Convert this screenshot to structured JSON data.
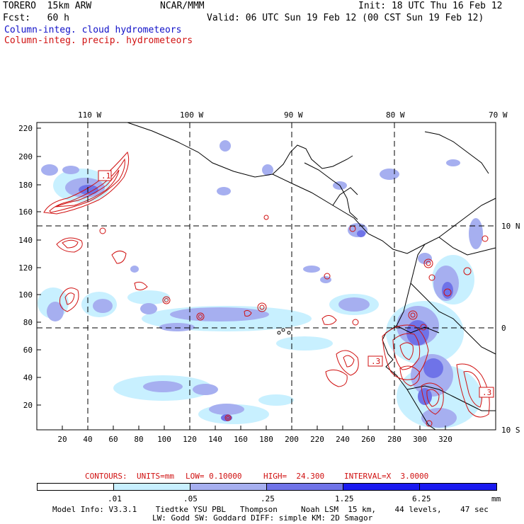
{
  "header": {
    "model": "TORERO  15km ARW",
    "org": "NCAR/MMM",
    "init": "Init: 18 UTC Thu 16 Feb 12",
    "fcst": "Fcst:   60 h",
    "valid": "Valid: 06 UTC Sun 19 Feb 12 (00 CST Sun 19 Feb 12)",
    "field1": "Column-integ. cloud hydrometeors",
    "field2": "Column-integ. precip. hydrometeors"
  },
  "axes": {
    "lon_labels": [
      "110 W",
      "100 W",
      "90 W",
      "80 W",
      "70 W"
    ],
    "lat_labels": [
      "10 N",
      "0",
      "10 S"
    ],
    "y_ticks": [
      "220",
      "200",
      "180",
      "160",
      "140",
      "120",
      "100",
      "80",
      "60",
      "40",
      "20"
    ],
    "x_ticks": [
      "20",
      "40",
      "60",
      "80",
      "100",
      "120",
      "140",
      "160",
      "180",
      "200",
      "220",
      "240",
      "260",
      "280",
      "300",
      "320"
    ]
  },
  "contour_labels": [
    ".1",
    ".3",
    ".3"
  ],
  "contours_info": {
    "prefix": "CONTOURS:",
    "units": "UNITS=mm",
    "low": "LOW= 0.10000",
    "high": "HIGH=  24.300",
    "interval": "INTERVAL=X  3.0000"
  },
  "colorbar": {
    "labels": [
      ".01",
      ".05",
      ".25",
      "1.25",
      "6.25"
    ],
    "unit": "mm",
    "colors": [
      "#ffffff",
      "#c8f0ff",
      "#a6aff0",
      "#6f73e8",
      "#1a1af0"
    ]
  },
  "footer": {
    "line1": "Model Info: V3.3.1    Tiedtke YSU PBL   Thompson     Noah LSM  15 km,    44 levels,    47 sec",
    "line2": "LW: Godd SW: Goddard DIFF: simple KM: 2D Smagor"
  }
}
